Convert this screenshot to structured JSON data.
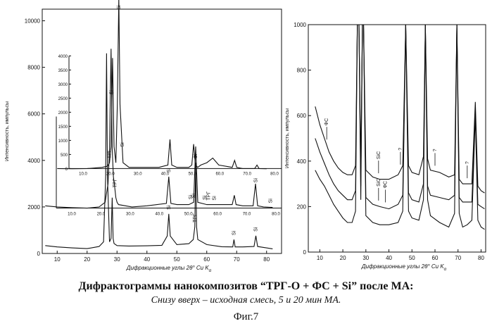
{
  "caption": {
    "title": "Дифрактограммы нанокомпозитов “ТРГ-О + ФС +  Si” после МА:",
    "subtitle": "Снизу вверх – исходная смесь,  5 и 20 мин  МА.",
    "figure_label": "Фиг.7"
  },
  "chart_data": [
    {
      "type": "line",
      "title": "",
      "xlabel": "Дифракционные углы 2θ° Cu K",
      "xlabel_sub": "α",
      "ylabel": "Интенсивность, импульсы",
      "xlim": [
        5,
        85
      ],
      "ylim": [
        0,
        10500
      ],
      "xticks": [
        10,
        20,
        30,
        40,
        50,
        60,
        70,
        80
      ],
      "yticks": [
        0,
        2000,
        4000,
        6000,
        8000,
        10000
      ],
      "note": "three stacked patterns, each drawn on a progressively offset baseline (staggered inset axes)",
      "offset_axis_labels": {
        "top_inset_yticks": [
          "0",
          "500",
          "1000",
          "1500",
          "2000",
          "2500",
          "3000",
          "3500",
          "4000"
        ],
        "top_inset_xticks": [
          "10.0",
          "20.0",
          "30.0",
          "40.0",
          "50.0",
          "60.0",
          "70.0",
          "80.0"
        ],
        "middle_inset_xticks": [
          "10.0",
          "20.0",
          "30.0",
          "40.0",
          "50.0",
          "60.0",
          "70.0",
          "80.0"
        ]
      },
      "series": [
        {
          "name": "исходная смесь",
          "x": [
            6,
            10,
            15,
            20,
            24,
            25.5,
            26.2,
            26.5,
            26.8,
            27.5,
            28,
            28.4,
            28.7,
            29,
            30,
            34,
            40,
            45,
            46.8,
            47.3,
            47.8,
            50,
            54,
            55.5,
            56,
            56.3,
            56.6,
            57,
            60,
            65,
            68.7,
            69.1,
            69.5,
            72,
            75.8,
            76.4,
            77,
            79,
            82
          ],
          "y": [
            340,
            280,
            240,
            210,
            300,
            500,
            3300,
            8600,
            3300,
            500,
            650,
            2400,
            650,
            430,
            340,
            320,
            330,
            350,
            750,
            1700,
            750,
            380,
            420,
            600,
            1150,
            3900,
            1150,
            600,
            380,
            290,
            280,
            600,
            280,
            280,
            300,
            760,
            300,
            260,
            200
          ]
        },
        {
          "name": "5 мин МА",
          "x": [
            6,
            10,
            15,
            20,
            24,
            26,
            26.5,
            27,
            27.5,
            28,
            28.4,
            28.8,
            29.2,
            29.6,
            30,
            30.5,
            35,
            40,
            46.5,
            47.3,
            48,
            50,
            54,
            55.6,
            56.3,
            57,
            60,
            64,
            68.5,
            69.2,
            69.8,
            72,
            75.5,
            76.3,
            77,
            79,
            82
          ],
          "y": [
            2050,
            2000,
            1970,
            1950,
            2000,
            2200,
            2600,
            3000,
            4500,
            8800,
            4500,
            3300,
            2900,
            2400,
            2200,
            2100,
            2000,
            2050,
            2150,
            3300,
            2150,
            2100,
            2100,
            2200,
            4600,
            2200,
            2100,
            2100,
            2100,
            2500,
            2100,
            2050,
            2050,
            3000,
            2050,
            2000,
            1980
          ]
        },
        {
          "name": "20 мин МА",
          "x": [
            10,
            15,
            20,
            25,
            26.8,
            27.5,
            28,
            28.5,
            29,
            29.6,
            30.1,
            30.6,
            31,
            32,
            34,
            40,
            44,
            47,
            47.7,
            48.3,
            50,
            54,
            55,
            55.6,
            56.2,
            57,
            58,
            60,
            62,
            64,
            68.5,
            69.3,
            70,
            72,
            76,
            76.8,
            77.5,
            80
          ],
          "y": [
            3650,
            3640,
            3650,
            3700,
            3750,
            3900,
            4600,
            8400,
            4600,
            3900,
            6400,
            11000,
            6400,
            3900,
            3700,
            3700,
            3700,
            3800,
            4900,
            3800,
            3700,
            3700,
            3800,
            4700,
            3800,
            3700,
            3800,
            3900,
            4100,
            3800,
            3700,
            4000,
            3700,
            3650,
            3650,
            3800,
            3650,
            3640
          ]
        }
      ],
      "annotations": [
        {
          "label": "ТРГ",
          "x": 27.5,
          "series": "20 мин МА"
        },
        {
          "label": "Si",
          "x": 30.6,
          "series": "20 мин МА"
        },
        {
          "label": "Si",
          "x": 31.8,
          "series": "20 мин МА"
        },
        {
          "label": "ТРГ",
          "x": 27.3,
          "series": "5 мин МА"
        },
        {
          "label": "ТРГ",
          "x": 29.4,
          "series": "5 мин МА"
        },
        {
          "label": "Si",
          "x": 28.2,
          "series": "5 мин МА"
        },
        {
          "label": "Si",
          "x": 47.3,
          "series": "5 мин МА"
        },
        {
          "label": "Si",
          "x": 54.7,
          "series": "5 мин МА"
        },
        {
          "label": "Si",
          "x": 55.6,
          "series": "5 мин МА"
        },
        {
          "label": "Si",
          "x": 59.3,
          "series": "5 мин МА"
        },
        {
          "label": "ТРГ",
          "x": 60.6,
          "series": "5 мин МА"
        },
        {
          "label": "Si",
          "x": 62.5,
          "series": "5 мин МА"
        },
        {
          "label": "Si",
          "x": 76.4,
          "series": "5 мин МА"
        },
        {
          "label": "Si",
          "x": 81.4,
          "series": "5 мин МА"
        },
        {
          "label": "Si",
          "x": 47.3,
          "series": "исходная смесь"
        },
        {
          "label": "Si",
          "x": 56.3,
          "series": "исходная смесь"
        },
        {
          "label": "ТРГ",
          "x": 56.0,
          "series": "исходная смесь"
        },
        {
          "label": "Si",
          "x": 69.1,
          "series": "исходная смесь"
        },
        {
          "label": "Si",
          "x": 76.4,
          "series": "исходная смесь"
        }
      ]
    },
    {
      "type": "line",
      "title": "",
      "xlabel": "Дифракционные углы 2θ° Cu K",
      "xlabel_sub": "α",
      "ylabel": "Интенсивность, импульсы",
      "xlim": [
        5,
        82
      ],
      "ylim": [
        0,
        1000
      ],
      "xticks": [
        10,
        20,
        30,
        40,
        50,
        60,
        70,
        80
      ],
      "yticks": [
        0,
        200,
        400,
        600,
        800,
        1000
      ],
      "series": [
        {
          "name": "исходная смесь",
          "x": [
            8,
            10,
            12,
            14,
            16,
            18,
            20,
            22,
            24,
            25.5,
            26.3,
            27,
            27.8,
            28.5,
            29,
            30,
            33,
            36,
            40,
            44,
            46,
            47.3,
            48.5,
            50,
            53,
            55,
            55.8,
            56.8,
            58,
            62,
            66,
            68.5,
            69.5,
            70.5,
            72,
            74,
            76,
            77.5,
            78.6,
            80,
            81.5
          ],
          "y": [
            360,
            320,
            290,
            250,
            210,
            180,
            150,
            130,
            130,
            180,
            1000,
            1000,
            230,
            1000,
            1000,
            160,
            130,
            120,
            120,
            130,
            180,
            1000,
            180,
            150,
            140,
            230,
            1000,
            230,
            160,
            130,
            110,
            170,
            1000,
            170,
            110,
            120,
            140,
            600,
            140,
            110,
            100
          ]
        },
        {
          "name": "5 мин МА",
          "x": [
            8,
            10,
            12,
            14,
            16,
            18,
            20,
            22,
            24,
            25.5,
            26.3,
            27,
            27.8,
            28.5,
            29,
            30,
            33,
            36,
            40,
            44,
            46,
            47.3,
            48.5,
            50,
            53,
            55,
            55.8,
            56.8,
            58,
            62,
            66,
            68.5,
            69.5,
            70.5,
            72,
            74,
            76,
            77.5,
            78.6,
            80,
            81.5
          ],
          "y": [
            500,
            440,
            390,
            340,
            300,
            270,
            250,
            230,
            230,
            270,
            1000,
            1000,
            290,
            1000,
            1000,
            240,
            210,
            200,
            190,
            210,
            250,
            1000,
            260,
            230,
            220,
            300,
            1000,
            290,
            250,
            240,
            230,
            250,
            1000,
            240,
            220,
            220,
            220,
            620,
            210,
            200,
            190
          ]
        },
        {
          "name": "20 мин МА",
          "x": [
            8,
            10,
            12,
            14,
            16,
            18,
            20,
            22,
            24,
            25.5,
            26.3,
            27,
            27.8,
            28.5,
            29,
            30,
            33,
            36,
            40,
            44,
            46,
            47.3,
            48.5,
            50,
            53,
            55,
            55.8,
            56.8,
            58,
            62,
            66,
            68.5,
            69.5,
            70.5,
            72,
            74,
            76,
            77.5,
            78.6,
            80,
            81.5
          ],
          "y": [
            640,
            560,
            500,
            440,
            400,
            370,
            350,
            340,
            340,
            380,
            1000,
            1000,
            380,
            1000,
            1000,
            360,
            330,
            320,
            320,
            340,
            380,
            1000,
            380,
            350,
            340,
            420,
            1000,
            410,
            360,
            350,
            330,
            340,
            1000,
            320,
            300,
            300,
            300,
            660,
            290,
            270,
            260
          ]
        }
      ],
      "annotations": [
        {
          "label": "ФС",
          "x": 13,
          "series": "20 мин МА"
        },
        {
          "label": "SiC",
          "x": 35.5,
          "series": "20 мин МА"
        },
        {
          "label": "?",
          "x": 45,
          "series": "20 мин МА"
        },
        {
          "label": "?",
          "x": 60,
          "series": "20 мин МА"
        },
        {
          "label": "?",
          "x": 74,
          "series": "20 мин МА"
        },
        {
          "label": "SiC",
          "x": 35.5,
          "series": "5 мин МА"
        },
        {
          "label": "ФС",
          "x": 38.5,
          "series": "5 мин МА"
        }
      ]
    }
  ]
}
